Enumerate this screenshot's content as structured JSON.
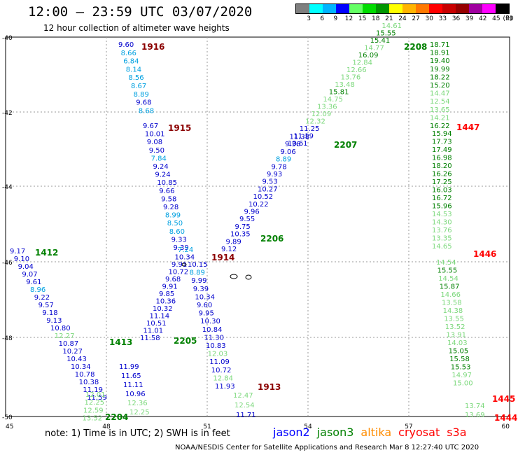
{
  "title": "12:00 – 23:59 UTC 03/07/2020",
  "subtitle": "12 hour collection of altimeter wave heights",
  "legend": {
    "unit": "(ft)",
    "colors": [
      "#7f7f7f",
      "#00ffff",
      "#00b4ff",
      "#0000ff",
      "#64ff64",
      "#00dc00",
      "#009600",
      "#ffff00",
      "#ffb400",
      "#ff7800",
      "#ff0000",
      "#c80000",
      "#960000",
      "#a000a0",
      "#ff00ff",
      "#000000"
    ],
    "ticks": [
      "3",
      "6",
      "9",
      "12",
      "15",
      "18",
      "21",
      "24",
      "27",
      "30",
      "33",
      "36",
      "39",
      "42",
      "45",
      "70"
    ]
  },
  "axes": {
    "lon_labels": [
      "45",
      "48",
      "51",
      "54",
      "57",
      "60"
    ],
    "lat_labels": [
      "-40",
      "-42",
      "-44",
      "-46",
      "-48",
      "-50"
    ]
  },
  "tracks": [
    {
      "id": "1916",
      "label_color": "#8b0000",
      "points": [
        [
          "9.60",
          "#0000cd"
        ],
        [
          "8.66",
          "#00a0e0"
        ],
        [
          "6.84",
          "#00a0e0"
        ],
        [
          "8.14",
          "#00a0e0"
        ],
        [
          "8.56",
          "#00a0e0"
        ],
        [
          "8.67",
          "#00a0e0"
        ],
        [
          "8.89",
          "#00a0e0"
        ],
        [
          "9.68",
          "#0000cd"
        ],
        [
          "8.68",
          "#00a0e0"
        ]
      ]
    },
    {
      "id": "1915",
      "label_color": "#8b0000",
      "points": [
        [
          "9.67",
          "#0000cd"
        ],
        [
          "10.01",
          "#0000cd"
        ],
        [
          "9.08",
          "#0000cd"
        ],
        [
          "9.50",
          "#0000cd"
        ],
        [
          "7.84",
          "#00a0e0"
        ],
        [
          "9.24",
          "#0000cd"
        ],
        [
          "9.24",
          "#0000cd"
        ],
        [
          "10.85",
          "#0000cd"
        ],
        [
          "9.66",
          "#0000cd"
        ],
        [
          "9.58",
          "#0000cd"
        ],
        [
          "9.28",
          "#0000cd"
        ],
        [
          "8.99",
          "#00a0e0"
        ],
        [
          "8.50",
          "#00a0e0"
        ],
        [
          "8.60",
          "#00a0e0"
        ],
        [
          "9.33",
          "#0000cd"
        ],
        [
          "9.39",
          "#0000cd"
        ]
      ]
    },
    {
      "id": "1914",
      "label_color": "#8b0000",
      "points": [
        [
          "10.15",
          "#0000cd"
        ],
        [
          "8.89",
          "#00a0e0"
        ],
        [
          "9.99",
          "#0000cd"
        ],
        [
          "9.39",
          "#0000cd"
        ],
        [
          "10.34",
          "#0000cd"
        ],
        [
          "9.60",
          "#0000cd"
        ],
        [
          "9.95",
          "#0000cd"
        ],
        [
          "10.30",
          "#0000cd"
        ],
        [
          "10.84",
          "#0000cd"
        ],
        [
          "11.30",
          "#0000cd"
        ],
        [
          "10.83",
          "#0000cd"
        ],
        [
          "12.03",
          "#7cd87c"
        ],
        [
          "11.09",
          "#0000cd"
        ],
        [
          "10.72",
          "#0000cd"
        ],
        [
          "12.84",
          "#7cd87c"
        ],
        [
          "11.93",
          "#0000cd"
        ]
      ]
    },
    {
      "id": "1913",
      "label_color": "#8b0000",
      "points": [
        [
          "12.47",
          "#7cd87c"
        ],
        [
          "12.54",
          "#7cd87c"
        ],
        [
          "11.71",
          "#0000cd"
        ]
      ]
    },
    {
      "id": "1412",
      "label_color": "#008000",
      "points": [
        [
          "9.17",
          "#0000cd"
        ],
        [
          "9.10",
          "#0000cd"
        ],
        [
          "9.04",
          "#0000cd"
        ],
        [
          "9.07",
          "#0000cd"
        ],
        [
          "9.61",
          "#0000cd"
        ],
        [
          "8.96",
          "#00a0e0"
        ],
        [
          "9.22",
          "#0000cd"
        ],
        [
          "9.57",
          "#0000cd"
        ],
        [
          "9.18",
          "#0000cd"
        ],
        [
          "9.13",
          "#0000cd"
        ],
        [
          "10.80",
          "#0000cd"
        ],
        [
          "12.27",
          "#7cd87c"
        ],
        [
          "10.87",
          "#0000cd"
        ],
        [
          "10.27",
          "#0000cd"
        ],
        [
          "10.43",
          "#0000cd"
        ],
        [
          "10.34",
          "#0000cd"
        ],
        [
          "10.78",
          "#0000cd"
        ],
        [
          "10.38",
          "#0000cd"
        ],
        [
          "11.19",
          "#0000cd"
        ],
        [
          "11.59",
          "#0000cd"
        ]
      ]
    },
    {
      "id": "1413",
      "label_color": "#008000",
      "points": [
        [
          "11.99",
          "#0000cd"
        ],
        [
          "11.65",
          "#0000cd"
        ],
        [
          "11.11",
          "#0000cd"
        ],
        [
          "10.96",
          "#0000cd"
        ],
        [
          "12.36",
          "#7cd87c"
        ],
        [
          "12.25",
          "#7cd87c"
        ]
      ]
    },
    {
      "id": "2204",
      "label_color": "#008000",
      "points": [
        [
          "12.01",
          "#7cd87c"
        ],
        [
          "12.25",
          "#7cd87c"
        ],
        [
          "12.59",
          "#7cd87c"
        ],
        [
          "13.52",
          "#7cd87c"
        ]
      ]
    },
    {
      "id": "2205",
      "label_color": "#008000",
      "points": [
        [
          "11.58",
          "#0000cd"
        ],
        [
          "11.01",
          "#0000cd"
        ],
        [
          "10.51",
          "#0000cd"
        ],
        [
          "11.14",
          "#0000cd"
        ],
        [
          "10.32",
          "#0000cd"
        ],
        [
          "10.36",
          "#0000cd"
        ],
        [
          "9.85",
          "#0000cd"
        ],
        [
          "9.91",
          "#0000cd"
        ],
        [
          "9.68",
          "#0000cd"
        ],
        [
          "10.72",
          "#0000cd"
        ],
        [
          "9.91",
          "#0000cd"
        ],
        [
          "10.34",
          "#0000cd"
        ],
        [
          "7.24",
          "#00a0e0"
        ]
      ]
    },
    {
      "id": "2206",
      "label_color": "#008000",
      "points": [
        [
          "9.12",
          "#0000cd"
        ],
        [
          "9.89",
          "#0000cd"
        ],
        [
          "10.35",
          "#0000cd"
        ],
        [
          "9.75",
          "#0000cd"
        ],
        [
          "9.55",
          "#0000cd"
        ],
        [
          "9.96",
          "#0000cd"
        ],
        [
          "10.22",
          "#0000cd"
        ],
        [
          "10.52",
          "#0000cd"
        ],
        [
          "10.27",
          "#0000cd"
        ],
        [
          "9.53",
          "#0000cd"
        ],
        [
          "9.93",
          "#0000cd"
        ],
        [
          "9.78",
          "#0000cd"
        ],
        [
          "8.89",
          "#00a0e0"
        ],
        [
          "9.06",
          "#0000cd"
        ],
        [
          "9.36",
          "#0000cd"
        ],
        [
          "11.38",
          "#0000cd"
        ]
      ]
    },
    {
      "id": "2207",
      "label_color": "#008000",
      "points": [
        [
          "10.61",
          "#0000cd"
        ],
        [
          "11.19",
          "#0000cd"
        ],
        [
          "11.25",
          "#0000cd"
        ],
        [
          "12.32",
          "#7cd87c"
        ],
        [
          "12.09",
          "#7cd87c"
        ],
        [
          "13.36",
          "#7cd87c"
        ],
        [
          "14.75",
          "#7cd87c"
        ],
        [
          "15.81",
          "#008000"
        ],
        [
          "13.48",
          "#7cd87c"
        ],
        [
          "13.76",
          "#7cd87c"
        ],
        [
          "12.66",
          "#7cd87c"
        ],
        [
          "12.84",
          "#7cd87c"
        ],
        [
          "16.09",
          "#008000"
        ],
        [
          "14.77",
          "#7cd87c"
        ],
        [
          "15.41",
          "#008000"
        ],
        [
          "15.55",
          "#008000"
        ],
        [
          "14.61",
          "#7cd87c"
        ]
      ]
    },
    {
      "id": "2208",
      "label_color": "#008000",
      "points": [
        [
          "18.71",
          "#008000"
        ],
        [
          "18.91",
          "#008000"
        ],
        [
          "19.40",
          "#008000"
        ],
        [
          "19.99",
          "#008000"
        ],
        [
          "18.22",
          "#008000"
        ],
        [
          "15.20",
          "#008000"
        ],
        [
          "14.47",
          "#7cd87c"
        ],
        [
          "12.54",
          "#7cd87c"
        ],
        [
          "13.65",
          "#7cd87c"
        ],
        [
          "14.21",
          "#7cd87c"
        ],
        [
          "16.22",
          "#008000"
        ]
      ]
    },
    {
      "id": "1447",
      "label_color": "#ff0000",
      "points": [
        [
          "15.94",
          "#008000"
        ],
        [
          "17.73",
          "#008000"
        ],
        [
          "17.49",
          "#008000"
        ],
        [
          "16.98",
          "#008000"
        ],
        [
          "18.20",
          "#008000"
        ],
        [
          "16.26",
          "#008000"
        ],
        [
          "17.25",
          "#008000"
        ],
        [
          "16.03",
          "#008000"
        ],
        [
          "16.72",
          "#008000"
        ],
        [
          "15.96",
          "#008000"
        ],
        [
          "14.53",
          "#7cd87c"
        ],
        [
          "14.30",
          "#7cd87c"
        ],
        [
          "13.76",
          "#7cd87c"
        ],
        [
          "13.35",
          "#7cd87c"
        ],
        [
          "14.65",
          "#7cd87c"
        ]
      ]
    },
    {
      "id": "1446",
      "label_color": "#ff0000",
      "points": [
        [
          "14.54",
          "#7cd87c"
        ],
        [
          "15.55",
          "#008000"
        ],
        [
          "14.54",
          "#7cd87c"
        ],
        [
          "15.87",
          "#008000"
        ],
        [
          "14.66",
          "#7cd87c"
        ],
        [
          "13.58",
          "#7cd87c"
        ],
        [
          "14.38",
          "#7cd87c"
        ],
        [
          "13.55",
          "#7cd87c"
        ],
        [
          "13.52",
          "#7cd87c"
        ],
        [
          "13.91",
          "#7cd87c"
        ],
        [
          "14.03",
          "#7cd87c"
        ],
        [
          "15.05",
          "#008000"
        ],
        [
          "15.58",
          "#008000"
        ],
        [
          "15.53",
          "#008000"
        ],
        [
          "14.97",
          "#7cd87c"
        ],
        [
          "15.00",
          "#7cd87c"
        ]
      ]
    },
    {
      "id": "1445",
      "label_color": "#ff0000",
      "points": [
        [
          "13.74",
          "#7cd87c"
        ],
        [
          "13.69",
          "#7cd87c"
        ]
      ]
    },
    {
      "id": "1444",
      "label_color": "#ff0000",
      "points": []
    }
  ],
  "note": "note:  1) Time is in UTC;  2) SWH is in feet",
  "satellites": [
    {
      "name": "jason2",
      "color": "#0000ff"
    },
    {
      "name": "jason3",
      "color": "#008000"
    },
    {
      "name": "altika",
      "color": "#ff8c00"
    },
    {
      "name": "cryosat",
      "color": "#ff0000"
    },
    {
      "name": "s3a",
      "color": "#ff0000"
    }
  ],
  "footer": "NOAA/NESDIS Center for Satellite Applications and Research     Mar  8 12:27:40 UTC 2020"
}
